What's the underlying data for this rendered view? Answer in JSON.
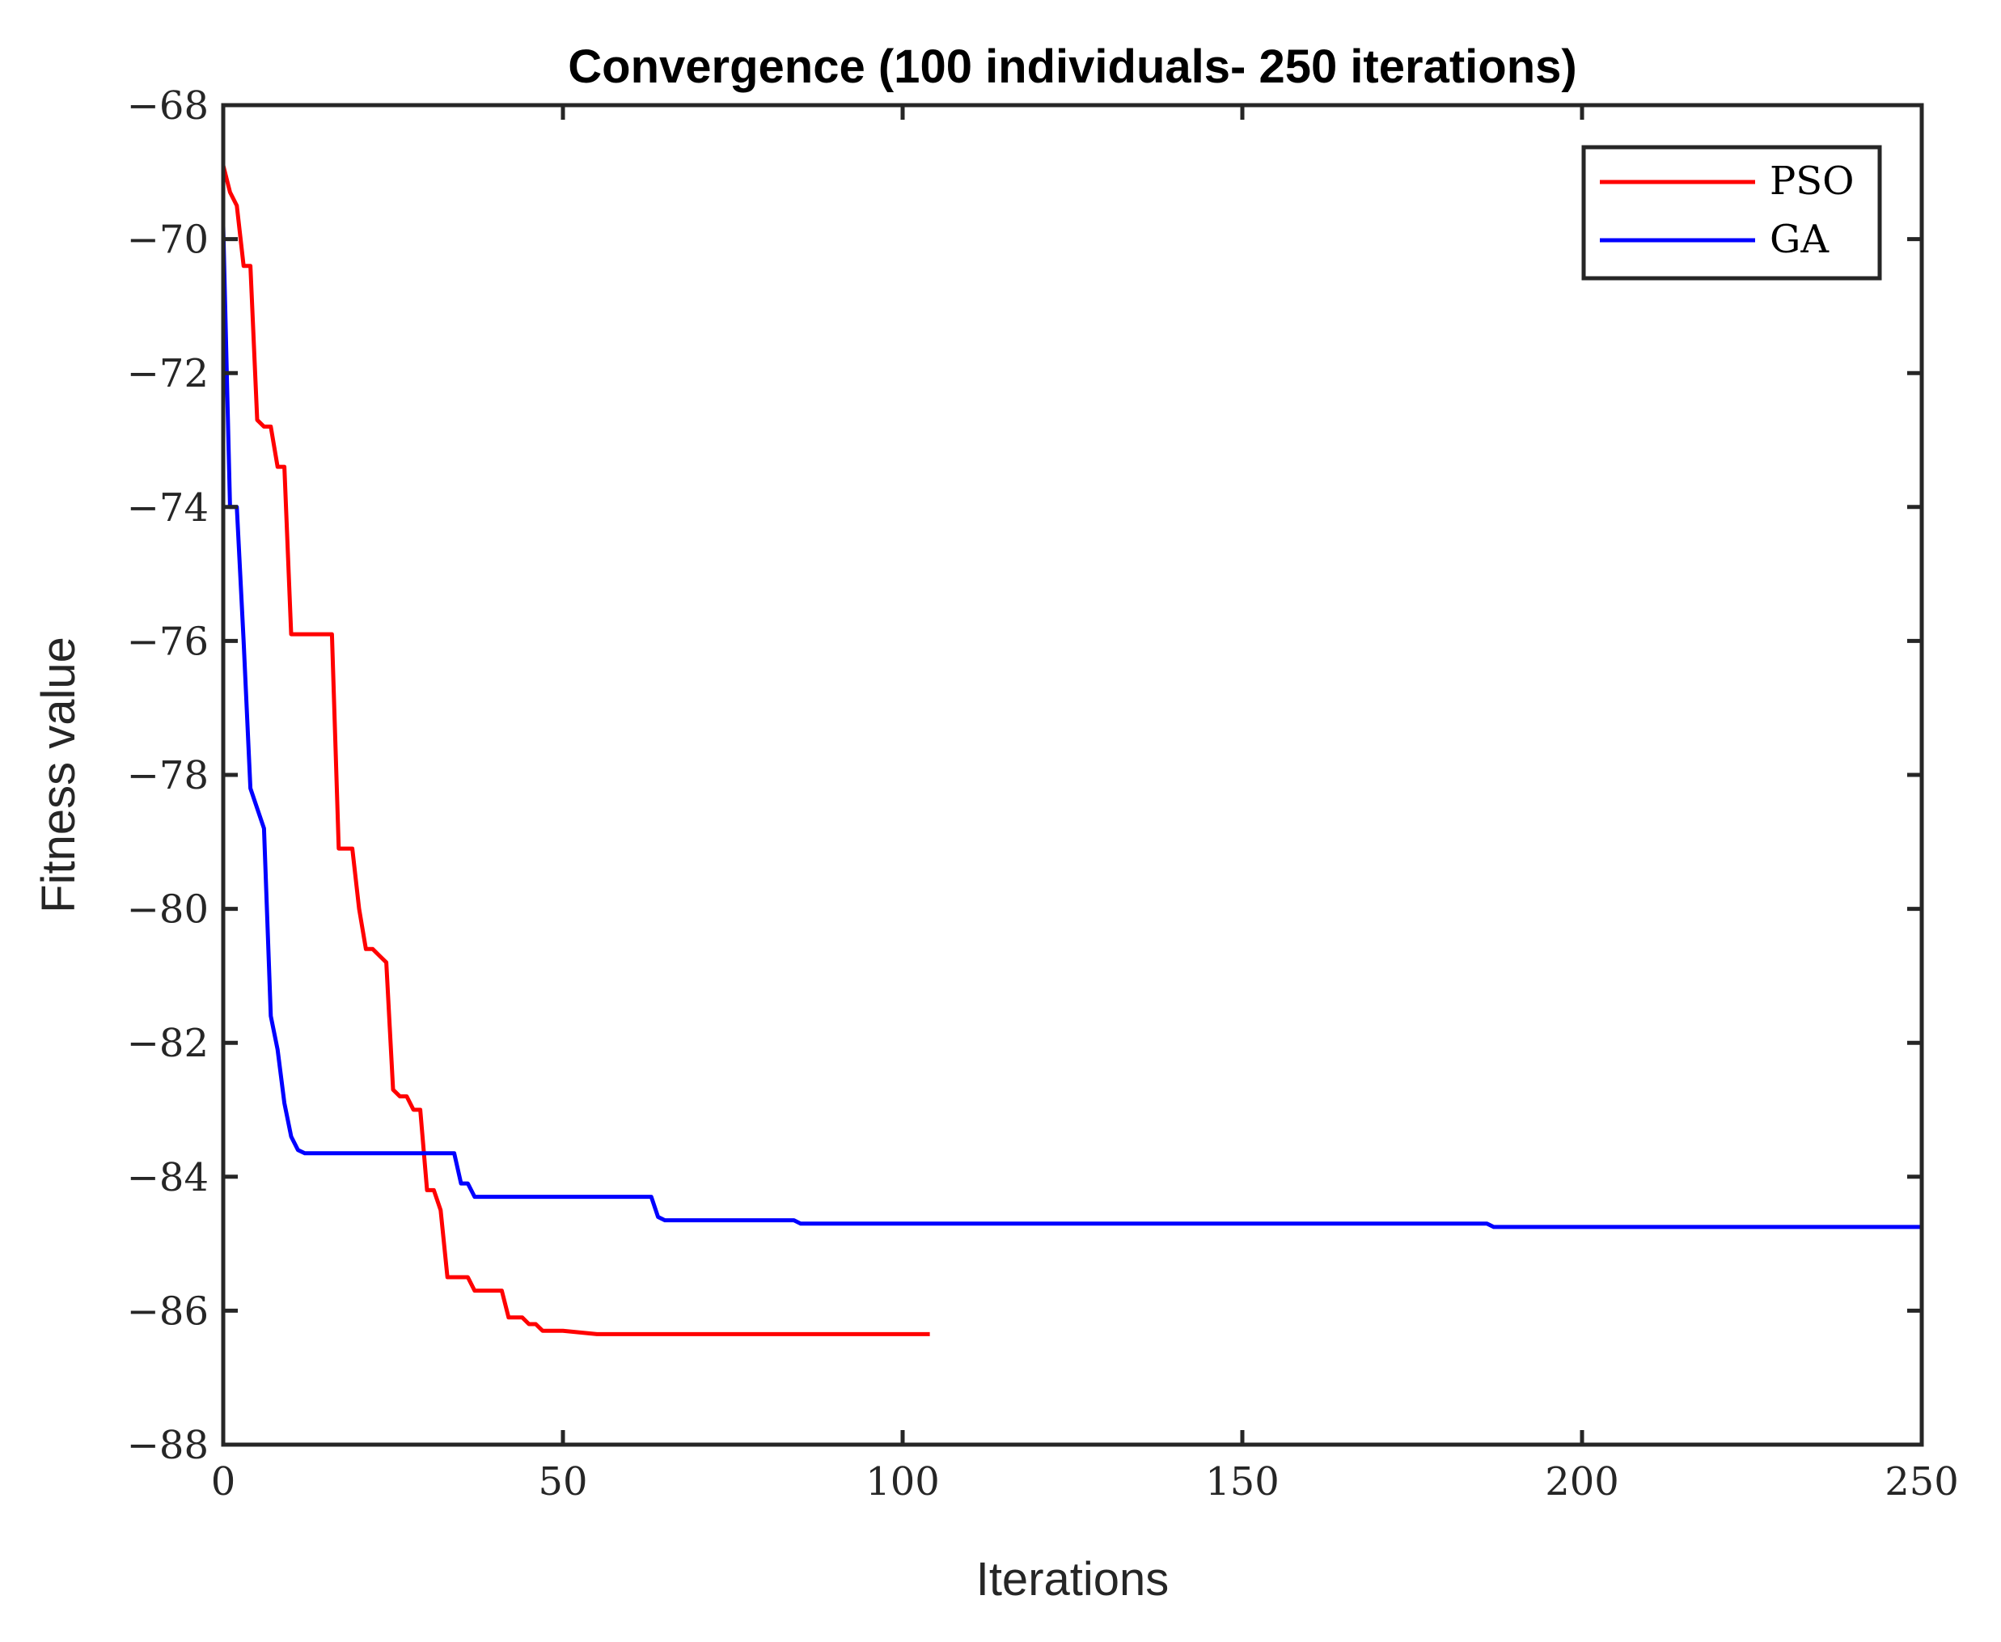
{
  "chart_data": {
    "type": "line",
    "title": "Convergence (100 individuals- 250 iterations)",
    "xlabel": "Iterations",
    "ylabel": "Fitness value",
    "xlim": [
      0,
      250
    ],
    "ylim": [
      -88,
      -68
    ],
    "xticks": [
      0,
      50,
      100,
      150,
      200,
      250
    ],
    "yticks": [
      -88,
      -86,
      -84,
      -82,
      -80,
      -78,
      -76,
      -74,
      -72,
      -70,
      -68
    ],
    "xtick_labels": [
      "0",
      "50",
      "100",
      "150",
      "200",
      "250"
    ],
    "ytick_labels": [
      "−88",
      "−86",
      "−84",
      "−82",
      "−80",
      "−78",
      "−76",
      "−74",
      "−72",
      "−70",
      "−68"
    ],
    "grid": false,
    "legend_position": "top-right",
    "series": [
      {
        "name": "PSO",
        "color": "#ff0000",
        "x": [
          0,
          1,
          2,
          3,
          4,
          5,
          6,
          7,
          8,
          9,
          10,
          11,
          16,
          17,
          18,
          19,
          20,
          21,
          22,
          23,
          24,
          25,
          26,
          27,
          28,
          29,
          30,
          31,
          32,
          33,
          34,
          35,
          36,
          37,
          38,
          39,
          40,
          41,
          42,
          43,
          44,
          45,
          46,
          47,
          50,
          55,
          60,
          104
        ],
        "y": [
          -68.9,
          -69.3,
          -69.5,
          -70.4,
          -70.4,
          -72.7,
          -72.8,
          -72.8,
          -73.4,
          -73.4,
          -75.9,
          -75.9,
          -75.9,
          -79.1,
          -79.1,
          -79.1,
          -80.0,
          -80.6,
          -80.6,
          -80.7,
          -80.8,
          -82.7,
          -82.8,
          -82.8,
          -83.0,
          -83.0,
          -84.2,
          -84.2,
          -84.5,
          -85.5,
          -85.5,
          -85.5,
          -85.5,
          -85.7,
          -85.7,
          -85.7,
          -85.7,
          -85.7,
          -86.1,
          -86.1,
          -86.1,
          -86.2,
          -86.2,
          -86.3,
          -86.3,
          -86.35,
          -86.35,
          -86.35
        ]
      },
      {
        "name": "GA",
        "color": "#0000ff",
        "x": [
          0,
          1,
          2,
          3,
          4,
          5,
          6,
          7,
          8,
          9,
          10,
          11,
          12,
          34,
          35,
          36,
          37,
          38,
          63,
          64,
          65,
          84,
          85,
          150,
          186,
          187,
          250
        ],
        "y": [
          -69.8,
          -74.0,
          -74.0,
          -76.0,
          -78.2,
          -78.5,
          -78.8,
          -81.6,
          -82.1,
          -82.9,
          -83.4,
          -83.6,
          -83.65,
          -83.65,
          -84.1,
          -84.1,
          -84.3,
          -84.3,
          -84.3,
          -84.6,
          -84.65,
          -84.65,
          -84.7,
          -84.7,
          -84.7,
          -84.75,
          -84.75
        ]
      }
    ]
  }
}
